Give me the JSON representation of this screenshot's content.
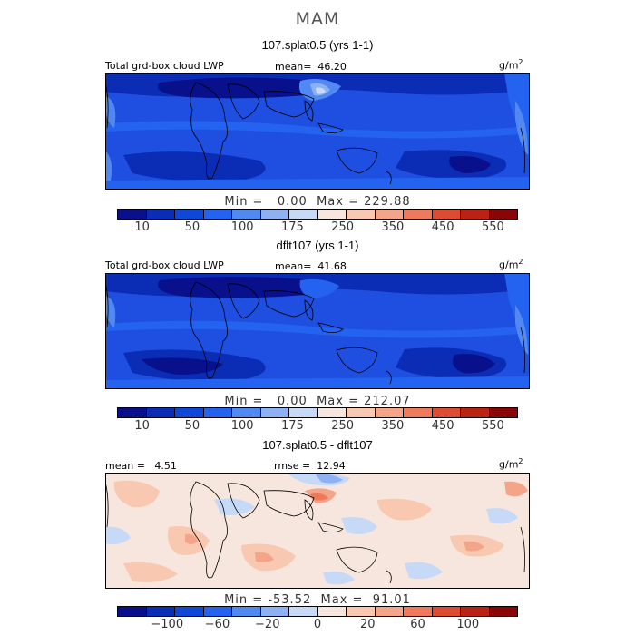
{
  "season": "MAM",
  "panels": [
    {
      "title": "107.splat0.5 (yrs 1-1)",
      "left_label": "Total grd-box cloud LWP",
      "stat_label": "mean=",
      "stat_value": "46.20",
      "units": "g/m",
      "units_sup": "2",
      "min_label": "Min =",
      "min_value": "0.00",
      "max_label": "Max =",
      "max_value": "229.88",
      "scale": "abs"
    },
    {
      "title": "dflt107 (yrs 1-1)",
      "left_label": "Total grd-box cloud LWP",
      "stat_label": "mean=",
      "stat_value": "41.68",
      "units": "g/m",
      "units_sup": "2",
      "min_label": "Min =",
      "min_value": "0.00",
      "max_label": "Max =",
      "max_value": "212.07",
      "scale": "abs"
    },
    {
      "title": "107.splat0.5 - dflt107",
      "left_label": "mean =",
      "left_value": "4.51",
      "stat_label": "rmse =",
      "stat_value": "12.94",
      "units": "g/m",
      "units_sup": "2",
      "min_label": "Min =",
      "min_value": "-53.52",
      "max_label": "Max =",
      "max_value": "91.01",
      "scale": "diff"
    }
  ],
  "colorbars": {
    "abs": {
      "colors": [
        "#08108c",
        "#0b2cb4",
        "#0f47d9",
        "#2363f0",
        "#5188f2",
        "#8eb1f4",
        "#c6d9f6",
        "#f7e6dd",
        "#f9c8b1",
        "#f3a489",
        "#ee7a5b",
        "#dc4c32",
        "#bc2213",
        "#8a0606"
      ],
      "ticks": [
        "10",
        "50",
        "100",
        "175",
        "250",
        "350",
        "450",
        "550"
      ],
      "tick_bins": [
        1,
        3,
        5,
        7,
        9,
        11,
        13,
        15
      ]
    },
    "diff": {
      "colors": [
        "#08108c",
        "#0b2cb4",
        "#0f47d9",
        "#2363f0",
        "#5188f2",
        "#8eb1f4",
        "#c6d9f6",
        "#f7e6dd",
        "#f9c8b1",
        "#f3a489",
        "#ee7a5b",
        "#dc4c32",
        "#bc2213",
        "#8a0606"
      ],
      "ticks": [
        "−100",
        "−60",
        "−20",
        "0",
        "20",
        "60",
        "100"
      ],
      "tick_bins": [
        2,
        4,
        6,
        8,
        10,
        12,
        14
      ]
    }
  }
}
